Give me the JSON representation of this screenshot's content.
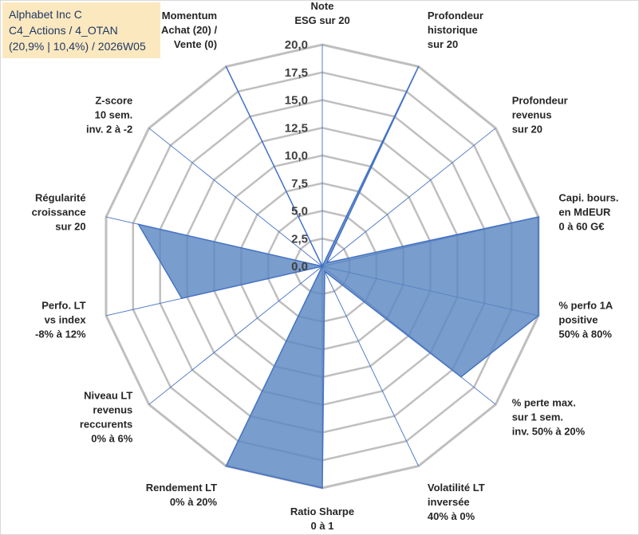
{
  "info": {
    "line1": "Alphabet Inc C",
    "line2": "C4_Actions / 4_OTAN",
    "line3": "(20,9% | 10,4%) / 2026W05"
  },
  "colors": {
    "fill": "#5b87c1",
    "stroke": "#4472c4",
    "grid": "#bfbfbf",
    "spoke": "#4472c4",
    "info_bg": "#fbe8bf"
  },
  "chart_data": {
    "type": "radar",
    "title": "",
    "rmin": 0,
    "rmax": 20,
    "ticks": [
      "0,0",
      "2,5",
      "5,0",
      "7,5",
      "10,0",
      "12,5",
      "15,0",
      "17,5",
      "20,0"
    ],
    "categories": [
      "Note\nESG sur 20",
      "Profondeur\nhistorique\nsur 20",
      "Profondeur\nrevenus\nsur 20",
      "Capi. bours.\nen MdEUR\n0 à 60 G€",
      "% perfo 1A\npositive\n50% à 80%",
      "% perte max.\nsur 1 sem.\ninv. 50% à 20%",
      "Volatilité LT\ninversée\n40% à 0%",
      "Ratio Sharpe\n0 à 1",
      "Rendement LT\n0% à 20%",
      "Niveau LT\nrevenus\nreccurents\n0% à 6%",
      "Perfo. LT\nvs index\n-8% à 12%",
      "Régularité\ncroissance\nsur 20",
      "Z-score\n10 sem.\ninv. 2 à -2",
      "Momentum\nAchat (20) /\nVente (0)"
    ],
    "series": [
      {
        "name": "Alphabet Inc C",
        "values": [
          0,
          20,
          0.5,
          20,
          20,
          16,
          0.5,
          20,
          20,
          0,
          13,
          17,
          0,
          20
        ]
      }
    ]
  }
}
